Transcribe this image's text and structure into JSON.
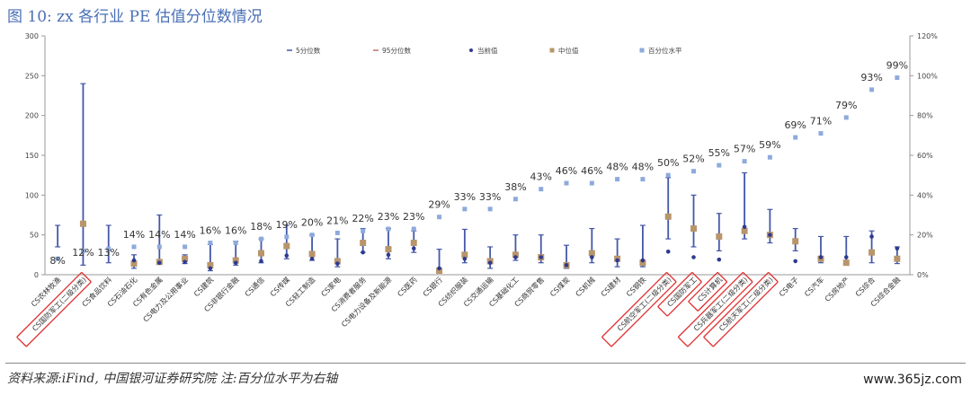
{
  "page": {
    "title": "图 10:  zx 各行业 PE 估值分位数情况",
    "source": "资料来源:iFind, 中国银河证券研究院 注:百分位水平为右轴",
    "watermark": "www.365jz.com"
  },
  "chart_data": {
    "type": "scatter",
    "ylim": [
      0,
      300
    ],
    "yticks": [
      0,
      50,
      100,
      150,
      200,
      250,
      300
    ],
    "y2lim": [
      0,
      120
    ],
    "y2ticks": [
      "0%",
      "20%",
      "40%",
      "60%",
      "80%",
      "100%",
      "120%"
    ],
    "legend_placement": "top",
    "colors": {
      "range": "#4458a8",
      "current": "#2f3a8f",
      "median": "#b8956a",
      "pct": "#8eaadc"
    },
    "series": [
      {
        "name": "5分位数",
        "key": "p5"
      },
      {
        "name": "95分位数",
        "key": "p95"
      },
      {
        "name": "当前值",
        "key": "cur"
      },
      {
        "name": "中位值",
        "key": "med"
      },
      {
        "name": "百分位水平",
        "key": "pct"
      }
    ],
    "categories": [
      "CS农林牧渔",
      "CS国防军工(二级分类)",
      "CS食品饮料",
      "CS石油石化",
      "CS有色金属",
      "CS电力及公用事业",
      "CS建筑",
      "CS非银行金融",
      "CS通信",
      "CS传媒",
      "CS轻工制造",
      "CS家电",
      "CS消费者服务",
      "CS电力设备及新能源",
      "CS医药",
      "CS银行",
      "CS纺织服装",
      "CS交通运输",
      "CS基础化工",
      "CS商贸零售",
      "CS煤炭",
      "CS机械",
      "CS建材",
      "CS钢铁",
      "CS航空军工(二级分类)",
      "CS国防军工",
      "CS计算机",
      "CS兵器军工(二级分类)",
      "CS航天军工(二级分类)",
      "CS电子",
      "CS汽车",
      "CS房地产",
      "CS综合",
      "CS综合金融"
    ],
    "highlighted": [
      1,
      24,
      25,
      26,
      27,
      28
    ],
    "p5": [
      35,
      12,
      15,
      8,
      14,
      14,
      5,
      12,
      15,
      20,
      18,
      10,
      28,
      20,
      28,
      3,
      15,
      8,
      18,
      15,
      8,
      15,
      10,
      10,
      45,
      35,
      30,
      45,
      40,
      30,
      15,
      12,
      15,
      14
    ],
    "p95": [
      62,
      240,
      62,
      25,
      75,
      25,
      38,
      42,
      45,
      62,
      50,
      45,
      58,
      58,
      55,
      32,
      57,
      35,
      50,
      50,
      37,
      58,
      45,
      62,
      122,
      100,
      77,
      128,
      82,
      58,
      48,
      48,
      55,
      35
    ],
    "cur": [
      null,
      null,
      null,
      18,
      15,
      16,
      8,
      15,
      17,
      24,
      20,
      14,
      28,
      25,
      33,
      8,
      20,
      15,
      22,
      22,
      12,
      22,
      18,
      18,
      29,
      22,
      19,
      60,
      50,
      17,
      22,
      22,
      48,
      33
    ],
    "med": [
      null,
      64,
      null,
      14,
      16,
      20,
      12,
      18,
      27,
      36,
      26,
      17,
      40,
      32,
      40,
      5,
      25,
      17,
      25,
      22,
      12,
      27,
      20,
      15,
      73,
      58,
      48,
      55,
      50,
      42,
      20,
      15,
      28,
      20
    ],
    "pct_labels": [
      "8%",
      "12%",
      "13%",
      "14%",
      "14%",
      "14%",
      "16%",
      "16%",
      "18%",
      "19%",
      "20%",
      "21%",
      "22%",
      "23%",
      "23%",
      "29%",
      "33%",
      "33%",
      "38%",
      "43%",
      "46%",
      "46%",
      "48%",
      "48%",
      "50%",
      "52%",
      "55%",
      "57%",
      "59%",
      "69%",
      "71%",
      "79%",
      "93%",
      "99%"
    ],
    "pct": [
      8,
      12,
      13,
      14,
      14,
      14,
      16,
      16,
      18,
      19,
      20,
      21,
      22,
      23,
      23,
      29,
      33,
      33,
      38,
      43,
      46,
      46,
      48,
      48,
      50,
      52,
      55,
      57,
      59,
      69,
      71,
      79,
      93,
      99
    ]
  }
}
